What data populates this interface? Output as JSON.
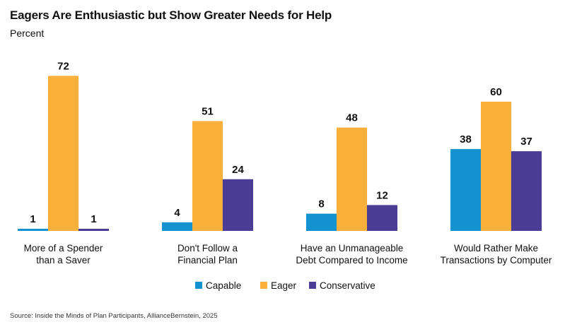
{
  "header": {
    "title": "Eagers Are Enthusiastic but Show Greater Needs for Help",
    "subtitle": "Percent"
  },
  "footer": {
    "source": "Source: Inside the Minds of Plan Participants, AllianceBernstein, 2025"
  },
  "colors": {
    "Capable": "#1491cf",
    "Eager": "#fbb03b",
    "Conservative": "#4b3d96"
  },
  "chart_data": {
    "type": "bar",
    "title": "Eagers Are Enthusiastic but Show Greater Needs for Help",
    "subtitle": "Percent",
    "categories": [
      [
        "More of a Spender",
        "than a Saver"
      ],
      [
        "Don't Follow a",
        "Financial Plan"
      ],
      [
        "Have an Unmanageable",
        "Debt Compared to Income"
      ],
      [
        "Would Rather Make",
        "Transactions by Computer"
      ]
    ],
    "series": [
      {
        "name": "Capable",
        "values": [
          1,
          4,
          8,
          38
        ]
      },
      {
        "name": "Eager",
        "values": [
          72,
          51,
          48,
          60
        ]
      },
      {
        "name": "Conservative",
        "values": [
          1,
          24,
          12,
          37
        ]
      }
    ],
    "ylim": [
      0,
      72
    ],
    "grid": false,
    "legend": "bottom-center",
    "data_labels": true
  }
}
